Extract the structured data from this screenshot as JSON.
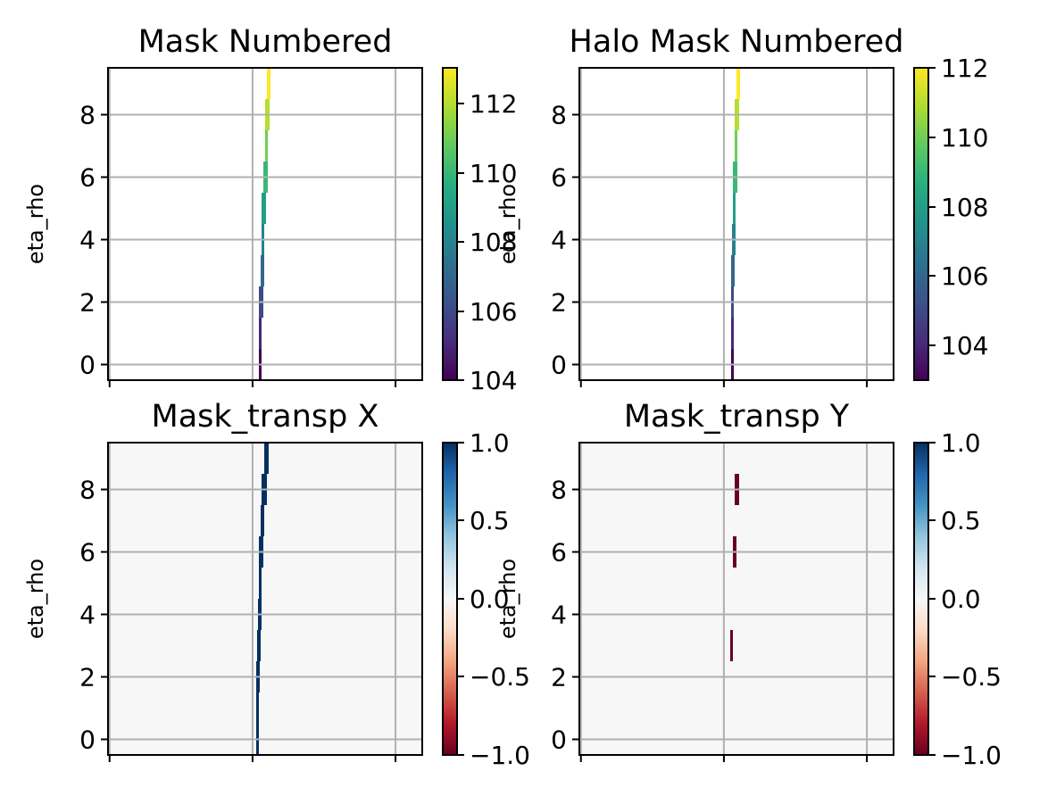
{
  "chart_data": [
    {
      "type": "heatmap",
      "title": "Mask Numbered",
      "ylabel": "eta_rho",
      "colormap": "viridis",
      "grid": true,
      "y_ticks": [
        "0",
        "2",
        "4",
        "6",
        "8"
      ],
      "ylim": [
        -0.5,
        9.5
      ],
      "colorbar": {
        "ticks": [
          "104",
          "106",
          "108",
          "110",
          "112"
        ],
        "range": [
          104,
          113
        ]
      },
      "cells": [
        {
          "eta": 0,
          "value": 104
        },
        {
          "eta": 1,
          "value": 105
        },
        {
          "eta": 2,
          "value": 106
        },
        {
          "eta": 3,
          "value": 107
        },
        {
          "eta": 4,
          "value": 108
        },
        {
          "eta": 5,
          "value": 109
        },
        {
          "eta": 6,
          "value": 110
        },
        {
          "eta": 7,
          "value": 111
        },
        {
          "eta": 8,
          "value": 112
        },
        {
          "eta": 9,
          "value": 113
        }
      ]
    },
    {
      "type": "heatmap",
      "title": "Halo Mask Numbered",
      "ylabel": "eta_rho",
      "colormap": "viridis",
      "grid": true,
      "y_ticks": [
        "0",
        "2",
        "4",
        "6",
        "8"
      ],
      "ylim": [
        -0.5,
        9.5
      ],
      "colorbar": {
        "ticks": [
          "104",
          "106",
          "108",
          "110",
          "112"
        ],
        "range": [
          103,
          112
        ]
      },
      "cells": [
        {
          "eta": 0,
          "value": 103
        },
        {
          "eta": 1,
          "value": 104
        },
        {
          "eta": 2,
          "value": 105
        },
        {
          "eta": 3,
          "value": 106
        },
        {
          "eta": 4,
          "value": 107
        },
        {
          "eta": 5,
          "value": 108
        },
        {
          "eta": 6,
          "value": 109
        },
        {
          "eta": 7,
          "value": 110
        },
        {
          "eta": 8,
          "value": 111
        },
        {
          "eta": 9,
          "value": 112
        }
      ]
    },
    {
      "type": "heatmap",
      "title": "Mask_transp X",
      "ylabel": "eta_rho",
      "colormap": "RdBu",
      "grid": true,
      "y_ticks": [
        "0",
        "2",
        "4",
        "6",
        "8"
      ],
      "ylim": [
        -0.5,
        9.5
      ],
      "background_value": 0,
      "colorbar": {
        "ticks": [
          "−1.0",
          "−0.5",
          "0.0",
          "0.5",
          "1.0"
        ],
        "range": [
          -1,
          1
        ]
      },
      "cells": [
        {
          "eta": 0,
          "value": 1
        },
        {
          "eta": 1,
          "value": 1
        },
        {
          "eta": 2,
          "value": 1
        },
        {
          "eta": 3,
          "value": 1
        },
        {
          "eta": 4,
          "value": 1
        },
        {
          "eta": 5,
          "value": 1
        },
        {
          "eta": 6,
          "value": 1
        },
        {
          "eta": 7,
          "value": 1
        },
        {
          "eta": 8,
          "value": 1
        },
        {
          "eta": 9,
          "value": 1
        }
      ]
    },
    {
      "type": "heatmap",
      "title": "Mask_transp Y",
      "ylabel": "eta_rho",
      "colormap": "RdBu",
      "grid": true,
      "y_ticks": [
        "0",
        "2",
        "4",
        "6",
        "8"
      ],
      "ylim": [
        -0.5,
        9.5
      ],
      "background_value": 0,
      "colorbar": {
        "ticks": [
          "−1.0",
          "−0.5",
          "0.0",
          "0.5",
          "1.0"
        ],
        "range": [
          -1,
          1
        ]
      },
      "cells": [
        {
          "eta": 3,
          "value": -1
        },
        {
          "eta": 6,
          "value": -1
        },
        {
          "eta": 8,
          "value": -1
        }
      ]
    }
  ],
  "colors": {
    "background_diverging_zero": "#f4f6f6",
    "grid": "#b0b0b0",
    "red_min": "#67001f",
    "blue_max": "#053061"
  }
}
